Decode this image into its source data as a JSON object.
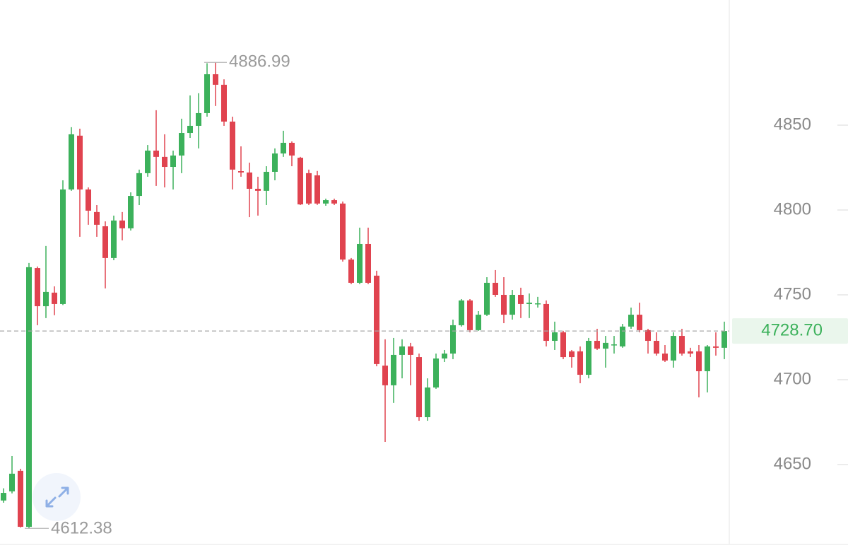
{
  "chart_data": {
    "type": "candlestick",
    "open": [
      4628.8,
      4634.2,
      4646.3,
      4613.3,
      4765.8,
      4743.3,
      4751.3,
      4744.6,
      4812.1,
      4843.8,
      4812.1,
      4798.8,
      4790.4,
      4771.7,
      4793.8,
      4789.2,
      4808.3,
      4821.7,
      4835,
      4831.3,
      4825.4,
      4832.1,
      4845.4,
      4849.6,
      4857.1,
      4880,
      4873.8,
      4852.1,
      4822.9,
      4822.1,
      4812.5,
      4811.3,
      4822.5,
      4833.3,
      4839.6,
      4830.8,
      4821.7,
      4820.4,
      4803.8,
      4805.8,
      4803.8,
      4770.8,
      4757.1,
      4780,
      4761.3,
      4708.3,
      4696.7,
      4714.6,
      4719.6,
      4713.3,
      4677.9,
      4695.4,
      4712.5,
      4715.4,
      4732.1,
      4746.7,
      4729.2,
      4738.3,
      4757.1,
      4750,
      4738.3,
      4750,
      4744.6,
      4744.6,
      4744.6,
      4722.9,
      4727.9,
      4716.7,
      4716.7,
      4702.9,
      4722.9,
      4718.3,
      4720.4,
      4719.6,
      4731.3,
      4738.3,
      4729.2,
      4722.9,
      4715.4,
      4711.3,
      4725.8,
      4716.7,
      4716.7,
      4705,
      4719.6,
      4718.8
    ],
    "high": [
      4636,
      4655,
      4647.5,
      4768.8,
      4766.7,
      4778.8,
      4755,
      4817.5,
      4848.8,
      4847.9,
      4813.3,
      4802.9,
      4793.3,
      4796.7,
      4798.8,
      4810.4,
      4823.8,
      4838.3,
      4858.8,
      4844.6,
      4835,
      4853.8,
      4867.5,
      4868.8,
      4886.5,
      4886.99,
      4877,
      4855,
      4837.5,
      4827.9,
      4819.6,
      4825.8,
      4836.3,
      4846.7,
      4840.4,
      4831.3,
      4823.8,
      4823,
      4806.7,
      4806.7,
      4805,
      4771.7,
      4789.6,
      4789.6,
      4764.2,
      4723.8,
      4724.6,
      4723.8,
      4721.7,
      4715.4,
      4700.8,
      4715.4,
      4717.5,
      4735.4,
      4747.5,
      4747.5,
      4740.4,
      4760.4,
      4764.6,
      4760.4,
      4752.9,
      4754.2,
      4750.8,
      4748.8,
      4746.7,
      4734.2,
      4728.8,
      4717.5,
      4719.6,
      4724.6,
      4730,
      4725.8,
      4725.8,
      4732.9,
      4742.5,
      4745.4,
      4730,
      4727.9,
      4720.4,
      4727.9,
      4730,
      4718.8,
      4720.4,
      4720.4,
      4727.9,
      4734.2
    ],
    "low": [
      4627.5,
      4633,
      4612.9,
      4612.38,
      4732.1,
      4736.3,
      4738,
      4744,
      4811.3,
      4784.2,
      4791.3,
      4784.2,
      4753.8,
      4770.4,
      4782.1,
      4787.9,
      4802.9,
      4819.6,
      4814.2,
      4813.3,
      4812.1,
      4821.7,
      4842.5,
      4836.3,
      4855,
      4861.3,
      4849.6,
      4812.1,
      4819.6,
      4795.8,
      4796.7,
      4802.9,
      4817.5,
      4831.3,
      4825.8,
      4802.9,
      4802.9,
      4803,
      4802.5,
      4802.9,
      4769.6,
      4756.3,
      4756.3,
      4756.3,
      4707.9,
      4663.3,
      4686.3,
      4700.8,
      4696.7,
      4675.8,
      4675.8,
      4694.6,
      4710.4,
      4712.1,
      4731.3,
      4727.9,
      4728.8,
      4737.5,
      4748.8,
      4733.3,
      4735.4,
      4736.3,
      4736.3,
      4742.5,
      4719.6,
      4717.5,
      4712.1,
      4707.1,
      4697.9,
      4700.8,
      4717.5,
      4707.1,
      4715.4,
      4718.8,
      4730,
      4727.9,
      4715.4,
      4714.2,
      4710.4,
      4707.1,
      4714.2,
      4713.3,
      4689.6,
      4692.5,
      4714.2,
      4712.1
    ],
    "close": [
      4633.3,
      4644.6,
      4613.3,
      4766.3,
      4743.3,
      4751.7,
      4744.6,
      4812.1,
      4844.6,
      4812.1,
      4799.6,
      4791.3,
      4771.7,
      4793.8,
      4789.2,
      4808.3,
      4821.7,
      4835,
      4831.3,
      4825.4,
      4832.1,
      4845.4,
      4849.6,
      4857.1,
      4880,
      4873.8,
      4852.1,
      4823.8,
      4822.1,
      4812.5,
      4811.3,
      4822.5,
      4833.3,
      4839.6,
      4832.1,
      4803.3,
      4803.8,
      4803.8,
      4805.8,
      4803.8,
      4770.8,
      4757.1,
      4780,
      4757.1,
      4709.2,
      4696.7,
      4714.6,
      4719.6,
      4714.6,
      4677.9,
      4695.4,
      4712.5,
      4715.4,
      4732.1,
      4746.7,
      4729.2,
      4738.3,
      4757.1,
      4750,
      4738.3,
      4750,
      4744.6,
      4745.4,
      4745,
      4722.9,
      4727.9,
      4713.3,
      4713.3,
      4702.9,
      4722.9,
      4718.3,
      4721.7,
      4720.8,
      4731.3,
      4738.3,
      4729.2,
      4722.9,
      4715.4,
      4711.3,
      4725.8,
      4715.4,
      4715.4,
      4705,
      4719.6,
      4718.8,
      4728.7
    ],
    "up_color": "#3cb15b",
    "down_color": "#e0434f",
    "ylim": [
      4602.9,
      4923.75
    ],
    "yticks": [
      4650,
      4700,
      4750,
      4800,
      4850
    ],
    "high_annotation": 4886.99,
    "low_annotation": 4612.38,
    "current_price": {
      "value": 4728.7,
      "label": "4728.70"
    }
  }
}
